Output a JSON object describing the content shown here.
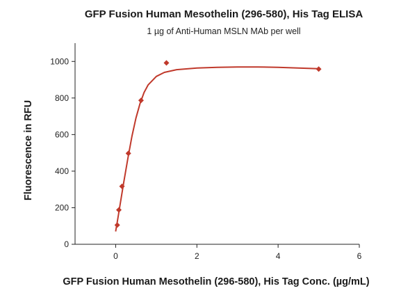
{
  "chart_data": {
    "type": "scatter",
    "title": "GFP Fusion Human Mesothelin (296-580), His Tag ELISA",
    "subtitle": "1 µg of Anti-Human MSLN MAb per well",
    "xlabel": "GFP Fusion Human Mesothelin (296-580), His Tag Conc. (µg/mL)",
    "ylabel": "Fluorescence in RFU",
    "xlim": [
      -1,
      6
    ],
    "ylim": [
      0,
      1100
    ],
    "xticks": [
      0,
      2,
      4,
      6
    ],
    "yticks": [
      0,
      200,
      400,
      600,
      800,
      1000
    ],
    "grid": false,
    "legend": "none",
    "marker_color": "#c0392b",
    "curve_color": "#c0392b",
    "series": [
      {
        "x": [
          0.039,
          0.078,
          0.156,
          0.313,
          0.625,
          1.25,
          5
        ],
        "y": [
          105,
          188,
          317,
          497,
          787,
          992,
          958
        ]
      }
    ],
    "fit_curve": {
      "x": [
        0.0,
        0.05,
        0.1,
        0.2,
        0.3,
        0.4,
        0.5,
        0.6,
        0.7,
        0.8,
        1.0,
        1.2,
        1.5,
        2.0,
        2.5,
        3.0,
        3.5,
        4.0,
        4.5,
        5.0
      ],
      "y": [
        70,
        135,
        205,
        340,
        470,
        590,
        690,
        770,
        830,
        872,
        918,
        940,
        955,
        964,
        968,
        970,
        970,
        968,
        964,
        960
      ]
    }
  }
}
